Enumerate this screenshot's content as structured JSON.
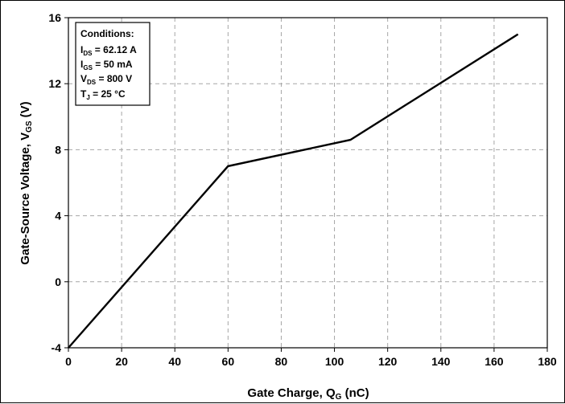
{
  "chart_data": {
    "type": "line",
    "xlabel": {
      "main": "Gate Charge, Q",
      "sub": "G",
      "suffix": " (nC)"
    },
    "ylabel": {
      "main": "Gate-Source Voltage, V",
      "sub": "GS",
      "suffix": " (V)"
    },
    "xlim": [
      0,
      180
    ],
    "ylim": [
      -4,
      16
    ],
    "x_ticks": [
      "0",
      "20",
      "40",
      "60",
      "80",
      "100",
      "120",
      "140",
      "160",
      "180"
    ],
    "y_ticks": [
      "-4",
      "0",
      "4",
      "8",
      "12",
      "16"
    ],
    "grid": true,
    "series": [
      {
        "x": [
          0,
          60,
          106,
          169
        ],
        "y": [
          -4,
          7.0,
          8.6,
          15.0
        ],
        "color": "#000000"
      }
    ],
    "annotation": {
      "title": "Conditions:",
      "lines": [
        {
          "pre": "I",
          "sub": "DS",
          "post": " = 62.12 A"
        },
        {
          "pre": "I",
          "sub": "GS",
          "post": " = 50 mA"
        },
        {
          "pre": "V",
          "sub": "DS",
          "post": " = 800 V"
        },
        {
          "pre": "T",
          "sub": "J",
          "post": " = 25 °C"
        }
      ]
    }
  }
}
